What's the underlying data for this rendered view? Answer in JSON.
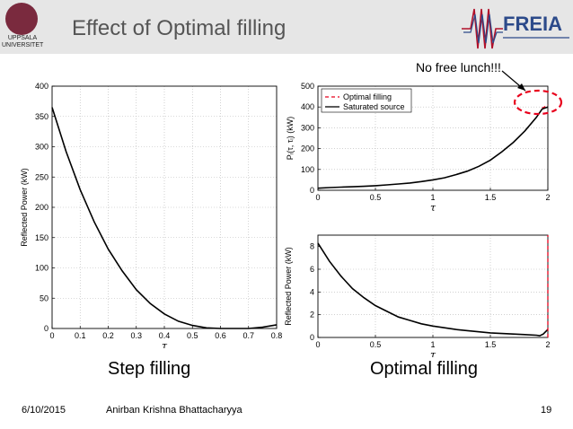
{
  "header": {
    "title": "Effect of Optimal filling",
    "university": "UPPSALA UNIVERSITET",
    "logo_text": "FREIA"
  },
  "annotation": "No free lunch!!!",
  "captions": {
    "left": "Step filling",
    "right": "Optimal filling"
  },
  "footer": {
    "date": "6/10/2015",
    "author": "Anirban Krishna Bhattacharyya",
    "page": "19"
  },
  "colors": {
    "header_bg": "#e6e6e6",
    "title": "#555555",
    "line": "#000000",
    "dashed": "#e8001c",
    "highlight": "#e8001c"
  },
  "chart_data": [
    {
      "id": "step",
      "type": "line",
      "xlabel": "τ",
      "ylabel": "Reflected Power (kW)",
      "xlim": [
        0,
        0.8
      ],
      "ylim": [
        0,
        400
      ],
      "xticks": [
        "0",
        "0.1",
        "0.2",
        "0.3",
        "0.4",
        "0.5",
        "0.6",
        "0.7",
        "0.8"
      ],
      "yticks": [
        "0",
        "50",
        "100",
        "150",
        "200",
        "250",
        "300",
        "350",
        "400"
      ],
      "grid": true,
      "series": [
        {
          "name": "Step filling",
          "style": "solid",
          "x": [
            0,
            0.05,
            0.1,
            0.15,
            0.2,
            0.25,
            0.3,
            0.35,
            0.4,
            0.45,
            0.5,
            0.55,
            0.6,
            0.65,
            0.7,
            0.75,
            0.8
          ],
          "y": [
            365,
            292,
            229,
            176,
            131,
            95,
            64,
            41,
            24,
            12,
            5,
            1,
            0,
            0,
            0,
            2,
            6
          ]
        }
      ]
    },
    {
      "id": "source",
      "type": "line",
      "xlabel": "τ",
      "ylabel": "Pᵢ(τ, τᵢ)  (kW)",
      "xlim": [
        0,
        2
      ],
      "ylim": [
        0,
        500
      ],
      "xticks": [
        "0",
        "0.5",
        "1",
        "1.5",
        "2"
      ],
      "yticks": [
        "0",
        "100",
        "200",
        "300",
        "400",
        "500"
      ],
      "grid": true,
      "legend": "top-left",
      "series": [
        {
          "name": "Optimal filling",
          "style": "dashed",
          "x": [
            1.95,
            1.97,
            2.0
          ],
          "y": [
            395,
            400,
            410
          ]
        },
        {
          "name": "Saturated source",
          "style": "solid",
          "x": [
            0,
            0.1,
            0.2,
            0.3,
            0.4,
            0.5,
            0.6,
            0.7,
            0.8,
            0.9,
            1.0,
            1.1,
            1.2,
            1.3,
            1.4,
            1.5,
            1.6,
            1.7,
            1.8,
            1.9,
            1.95,
            2.0
          ],
          "y": [
            10,
            13,
            15,
            17,
            19,
            22,
            26,
            30,
            35,
            42,
            50,
            60,
            75,
            92,
            115,
            145,
            185,
            230,
            285,
            350,
            390,
            400
          ]
        }
      ]
    },
    {
      "id": "reflected",
      "type": "line",
      "xlabel": "τ",
      "ylabel": "Reflected Power (kW)",
      "xlim": [
        0,
        2
      ],
      "ylim": [
        0,
        9
      ],
      "xticks": [
        "0",
        "0.5",
        "1",
        "1.5",
        "2"
      ],
      "yticks": [
        "0",
        "2",
        "4",
        "6",
        "8"
      ],
      "grid": true,
      "series": [
        {
          "name": "Reflected power",
          "style": "solid",
          "x": [
            0,
            0.1,
            0.2,
            0.3,
            0.4,
            0.5,
            0.6,
            0.7,
            0.8,
            0.9,
            1.0,
            1.1,
            1.2,
            1.3,
            1.4,
            1.5,
            1.6,
            1.7,
            1.8,
            1.9,
            1.93,
            1.96,
            2.0
          ],
          "y": [
            8.3,
            6.7,
            5.4,
            4.3,
            3.5,
            2.8,
            2.3,
            1.8,
            1.5,
            1.2,
            1.0,
            0.85,
            0.7,
            0.6,
            0.5,
            0.4,
            0.35,
            0.3,
            0.25,
            0.2,
            0.15,
            0.3,
            0.7
          ]
        },
        {
          "name": "Optimal filling",
          "style": "dashed",
          "x": [
            2.0,
            2.0
          ],
          "y": [
            0,
            9
          ]
        }
      ]
    }
  ]
}
